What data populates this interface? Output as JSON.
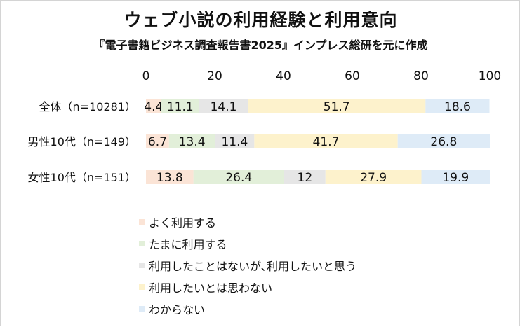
{
  "chart_data": {
    "type": "bar",
    "orientation": "horizontal",
    "stacked": true,
    "title": "ウェブ小説の利用経験と利用意向",
    "subtitle": "『電子書籍ビジネス調査報告書2025』インプレス総研を元に作成",
    "categories": [
      "全体（n=10281）",
      "男性10代（n=149）",
      "女性10代（n=151）"
    ],
    "xlim": [
      0,
      100
    ],
    "xticks": [
      0,
      20,
      40,
      60,
      80,
      100
    ],
    "grid": false,
    "legend_position": "bottom",
    "series": [
      {
        "name": "よく利用する",
        "values": [
          4.4,
          6.7,
          13.8
        ],
        "color": "#fbe4d6"
      },
      {
        "name": "たまに利用する",
        "values": [
          11.1,
          13.4,
          26.4
        ],
        "color": "#e2efd9"
      },
      {
        "name": "利用したことはないが､利用したいと思う",
        "values": [
          14.1,
          11.4,
          12
        ],
        "color": "#e6e6e6"
      },
      {
        "name": "利用したいとは思わない",
        "values": [
          51.7,
          41.7,
          27.9
        ],
        "color": "#fdf2cc"
      },
      {
        "name": "わからない",
        "values": [
          18.6,
          26.8,
          19.9
        ],
        "color": "#deebf7"
      }
    ]
  }
}
